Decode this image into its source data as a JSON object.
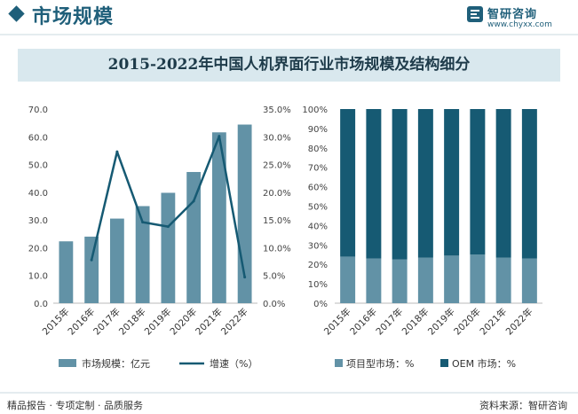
{
  "header": {
    "section_title": "市场规模",
    "logo_name": "智研咨询",
    "logo_url": "www.chyxx.com"
  },
  "main_title": "2015-2022年中国人机界面行业市场规模及结构细分",
  "footer": {
    "left_text": "精品报告 · 专项定制 · 品质服务",
    "right_text": "资料来源：智研咨询"
  },
  "colors": {
    "bar": "#6292a6",
    "line": "#165a73",
    "oem": "#165a73",
    "project": "#6292a6",
    "accent": "#1f5f7a"
  },
  "chart_data": [
    {
      "type": "bar",
      "title": "",
      "categories": [
        "2015年",
        "2016年",
        "2017年",
        "2018年",
        "2019年",
        "2020年",
        "2021年",
        "2022年"
      ],
      "left_axis": {
        "ylim": [
          0,
          70
        ],
        "ticks": [
          "0.0",
          "10.0",
          "20.0",
          "30.0",
          "40.0",
          "50.0",
          "60.0",
          "70.0"
        ]
      },
      "right_axis": {
        "ylim": [
          0,
          35
        ],
        "ticks": [
          "0.0%",
          "5.0%",
          "10.0%",
          "15.0%",
          "20.0%",
          "25.0%",
          "30.0%",
          "35.0%"
        ]
      },
      "series": [
        {
          "name": "市场规模：亿元",
          "kind": "bar",
          "axis": "left",
          "values": [
            22.3,
            24.0,
            30.5,
            35.0,
            39.8,
            47.3,
            61.6,
            64.4
          ]
        },
        {
          "name": "增速（%）",
          "kind": "line",
          "axis": "right",
          "values": [
            null,
            7.8,
            27.3,
            14.6,
            13.8,
            18.4,
            30.1,
            4.7
          ]
        }
      ],
      "legend": "bottom"
    },
    {
      "type": "bar",
      "stacked": true,
      "title": "",
      "categories": [
        "2015年",
        "2016年",
        "2017年",
        "2018年",
        "2019年",
        "2020年",
        "2021年",
        "2022年"
      ],
      "ylim": [
        0,
        100
      ],
      "ticks": [
        "0%",
        "10%",
        "20%",
        "30%",
        "40%",
        "50%",
        "60%",
        "70%",
        "80%",
        "90%",
        "100%"
      ],
      "series": [
        {
          "name": "项目型市场：%",
          "values": [
            24.0,
            23.0,
            22.5,
            23.5,
            24.5,
            25.0,
            23.5,
            23.0
          ]
        },
        {
          "name": "OEM 市场：%",
          "values": [
            76.0,
            77.0,
            77.5,
            76.5,
            75.5,
            75.0,
            76.5,
            77.0
          ]
        }
      ],
      "legend": "bottom"
    }
  ]
}
